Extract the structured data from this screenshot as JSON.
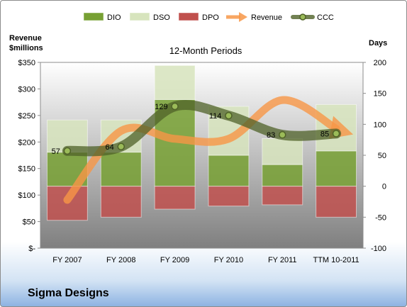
{
  "company": "Sigma Designs",
  "colors": {
    "dio": "#77a033",
    "dso": "#d7e4bd",
    "dpo": "#c0504d",
    "revenue": "#f79646",
    "ccc": "#4f6228",
    "plot_top": "#ffffff",
    "plot_bottom": "#7f7f7f"
  },
  "chart_data": {
    "type": "bar",
    "title": "12-Month Periods",
    "categories": [
      "FY 2007",
      "FY 2008",
      "FY 2009",
      "FY 2010",
      "FY 2011",
      "TTM 10-2011"
    ],
    "y_left": {
      "label_line1": "Revenue",
      "label_line2": "$millions",
      "range": [
        0,
        350
      ],
      "ticks": [
        0,
        50,
        100,
        150,
        200,
        250,
        300,
        350
      ],
      "tick_labels": [
        "$-",
        "$50",
        "$100",
        "$150",
        "$200",
        "$250",
        "$300",
        "$350"
      ]
    },
    "y_right": {
      "label": "Days",
      "range": [
        -100,
        200
      ],
      "ticks": [
        -100,
        -50,
        0,
        50,
        100,
        150,
        200
      ],
      "tick_labels": [
        "-100",
        "-50",
        "0",
        "50",
        "100",
        "150",
        "200"
      ]
    },
    "legend": {
      "position": "top",
      "entries": [
        "DIO",
        "DSO",
        "DPO",
        "Revenue",
        "CCC"
      ]
    },
    "series": [
      {
        "name": "DIO",
        "kind": "stacked-bar",
        "axis": "right",
        "values": [
          55,
          55,
          140,
          50,
          35,
          57
        ]
      },
      {
        "name": "DSO",
        "kind": "stacked-bar",
        "axis": "right",
        "values": [
          52,
          52,
          55,
          79,
          42,
          75
        ]
      },
      {
        "name": "DPO",
        "kind": "negative-bar",
        "axis": "right",
        "values": [
          -55,
          -50,
          -37,
          -32,
          -30,
          -50
        ]
      },
      {
        "name": "Revenue",
        "kind": "line",
        "axis": "left",
        "values": [
          91,
          221,
          206,
          206,
          279,
          225
        ]
      },
      {
        "name": "CCC",
        "kind": "line",
        "axis": "right",
        "values": [
          57,
          64,
          129,
          114,
          83,
          85
        ],
        "data_labels": [
          "57",
          "64",
          "129",
          "114",
          "83",
          "85"
        ]
      }
    ]
  }
}
